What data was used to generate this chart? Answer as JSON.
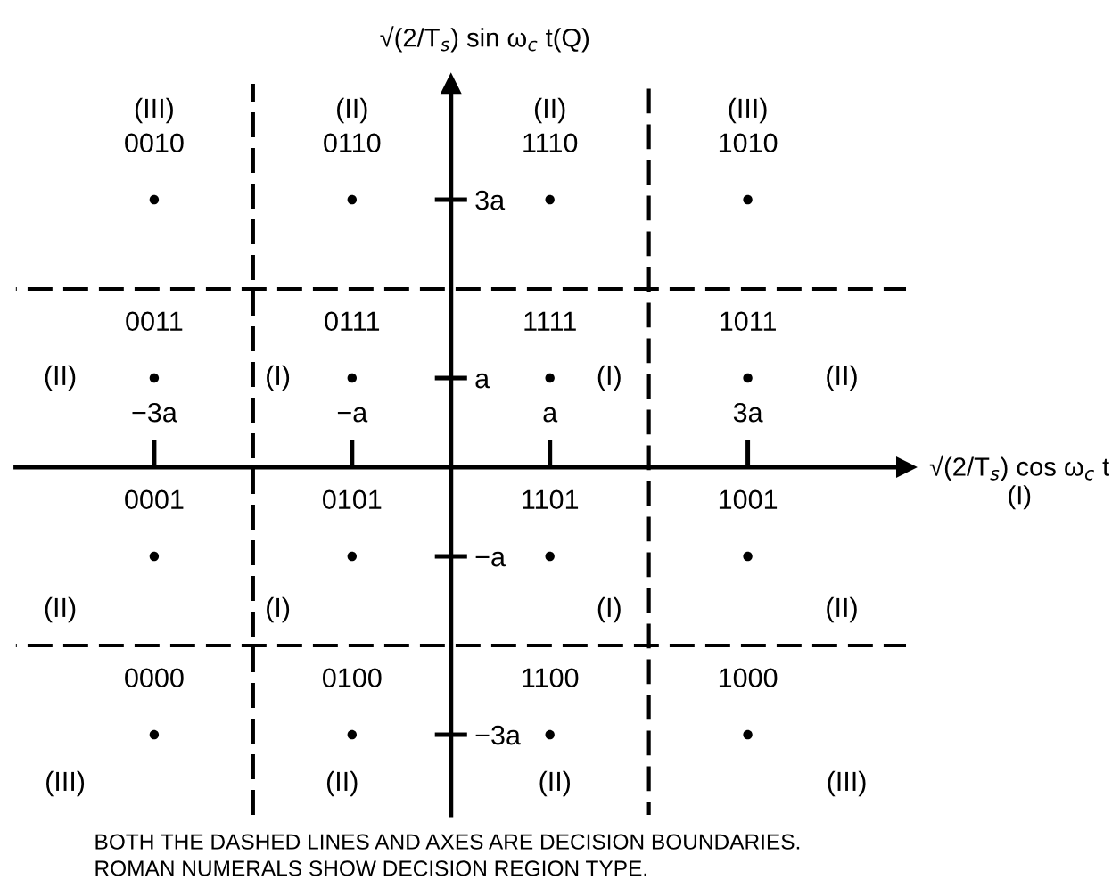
{
  "chart_data": {
    "type": "scatter",
    "xlabel": "√(2/T$_{s}$) cos ω$_{c}$ t\n(I)",
    "ylabel": "√(2/T$_{s}$) sin ω$_{c}$ t(Q)",
    "x": [
      -3,
      -1,
      1,
      3,
      -3,
      -1,
      1,
      3,
      -3,
      -1,
      1,
      3,
      -3,
      -1,
      1,
      3
    ],
    "values": [
      3,
      3,
      3,
      3,
      1,
      1,
      1,
      1,
      -1,
      -1,
      -1,
      -1,
      -3,
      -3,
      -3,
      -3
    ],
    "color": "#000000",
    "marker": "circle",
    "xlim": [
      -4.4,
      4.6
    ],
    "ylim": [
      -3.9,
      4.3
    ],
    "xticks": [
      {
        "value": -3,
        "label": "−3a"
      },
      {
        "value": -1,
        "label": "−a"
      },
      {
        "value": 1,
        "label": "a"
      },
      {
        "value": 3,
        "label": "3a"
      }
    ],
    "yticks": [
      {
        "value": -3,
        "label": "−3a"
      },
      {
        "value": -1,
        "label": "−a"
      },
      {
        "value": 1,
        "label": "a"
      },
      {
        "value": 3,
        "label": "3a"
      }
    ],
    "ref_lines": [
      {
        "axis": "x",
        "value": -2,
        "line_style": "dashed",
        "color": "#000000"
      },
      {
        "axis": "x",
        "value": 2,
        "line_style": "dashed",
        "color": "#000000"
      },
      {
        "axis": "y",
        "value": 2,
        "line_style": "dashed",
        "color": "#000000"
      },
      {
        "axis": "y",
        "value": -2,
        "line_style": "dashed",
        "color": "#000000"
      }
    ],
    "annotations": [
      {
        "text": "0010",
        "x": -3,
        "y": 3
      },
      {
        "text": "0110",
        "x": -1,
        "y": 3
      },
      {
        "text": "1110",
        "x": 1,
        "y": 3
      },
      {
        "text": "1010",
        "x": 3,
        "y": 3
      },
      {
        "text": "0011",
        "x": -3,
        "y": 1
      },
      {
        "text": "0111",
        "x": -1,
        "y": 1
      },
      {
        "text": "1111",
        "x": 1,
        "y": 1
      },
      {
        "text": "1011",
        "x": 3,
        "y": 1
      },
      {
        "text": "0001",
        "x": -3,
        "y": -1
      },
      {
        "text": "0101",
        "x": -1,
        "y": -1
      },
      {
        "text": "1101",
        "x": 1,
        "y": -1
      },
      {
        "text": "1001",
        "x": 3,
        "y": -1
      },
      {
        "text": "0000",
        "x": -3,
        "y": -3
      },
      {
        "text": "0100",
        "x": -1,
        "y": -3
      },
      {
        "text": "1100",
        "x": 1,
        "y": -3
      },
      {
        "text": "1000",
        "x": 3,
        "y": -3
      },
      "(III)",
      "(II)",
      "(II)",
      "(III)",
      "(II)",
      "(I)",
      "(I)",
      "(II)",
      "(II)",
      "(I)",
      "(I)",
      "(II)",
      "(III)",
      "(II)",
      "(II)",
      "(III)",
      "BOTH THE DASHED LINES AND AXES ARE DECISION BOUNDARIES.",
      "ROMAN NUMERALS SHOW DECISION REGION TYPE."
    ]
  }
}
